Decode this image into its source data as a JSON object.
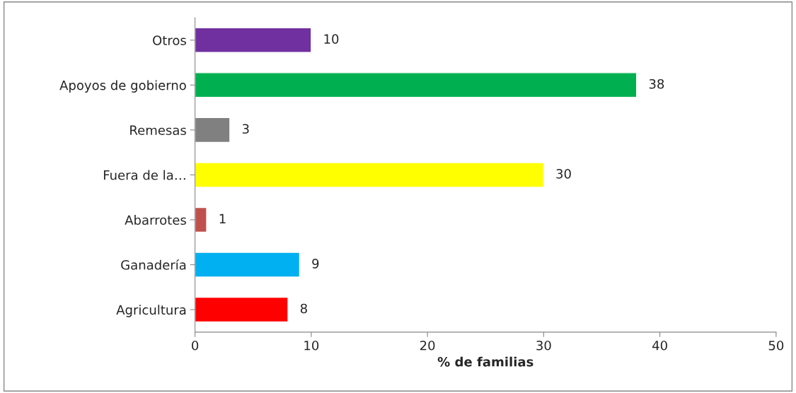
{
  "chart_data": {
    "type": "bar",
    "orientation": "horizontal",
    "xlabel": "% de familias",
    "categories": [
      "Otros",
      "Apoyos de gobierno",
      "Remesas",
      "Fuera de la…",
      "Abarrotes",
      "Ganadería",
      "Agricultura"
    ],
    "values": [
      10,
      38,
      3,
      30,
      1,
      9,
      8
    ],
    "colors": [
      "#7030a0",
      "#00b050",
      "#808080",
      "#ffff00",
      "#c0504d",
      "#00b0f0",
      "#ff0000"
    ],
    "xlim": [
      0,
      50
    ],
    "xticks": [
      0,
      10,
      20,
      30,
      40,
      50
    ],
    "data_labels": true,
    "grid": false,
    "legend": false
  }
}
